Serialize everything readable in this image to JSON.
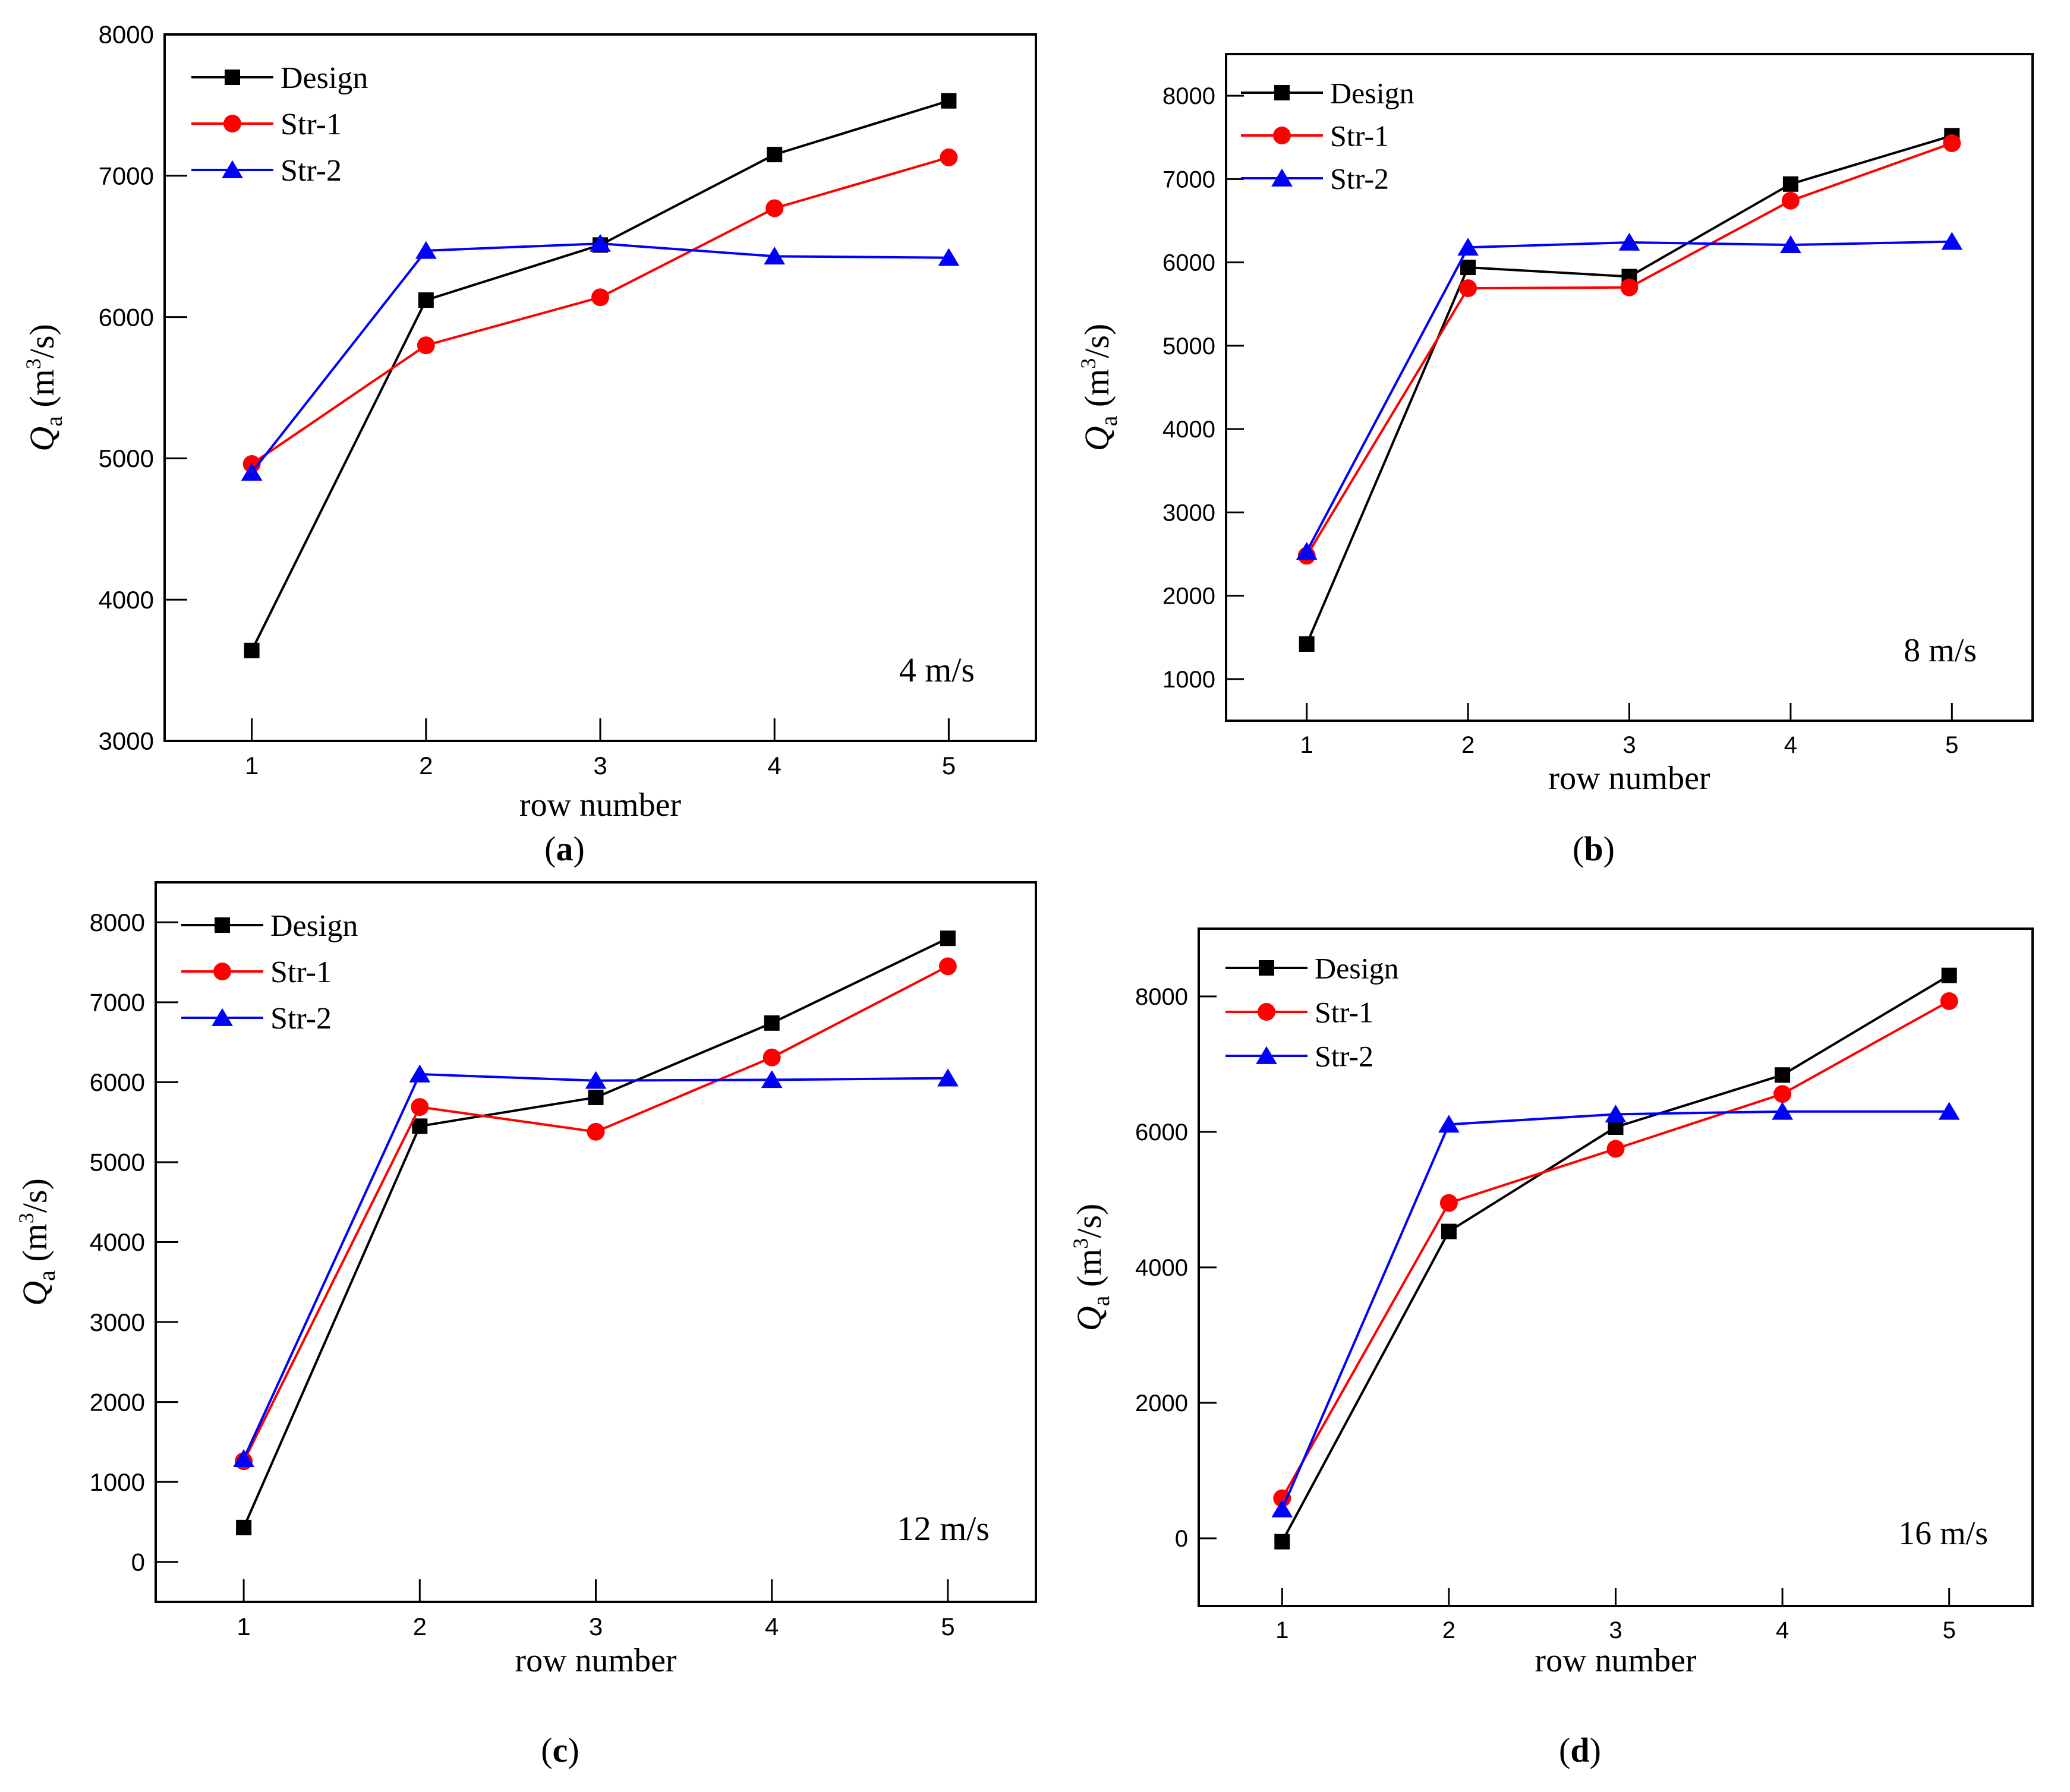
{
  "figure": {
    "colors": {
      "Design": "#000000",
      "Str-1": "#ff0000",
      "Str-2": "#0000ff"
    },
    "markers": {
      "Design": "square",
      "Str-1": "circle",
      "Str-2": "triangle"
    }
  },
  "chart_data": [
    {
      "type": "line",
      "panel_label": "a",
      "annotation": "4 m/s",
      "xlabel": "row number",
      "ylabel_main": "Q",
      "ylabel_sub": "a",
      "ylabel_unit": "(m",
      "ylabel_sup": "3",
      "ylabel_tail": "/s)",
      "x": [
        1,
        2,
        3,
        4,
        5
      ],
      "xlim": [
        0.5,
        5.5
      ],
      "ylim": [
        3000,
        8000
      ],
      "yticks": [
        3000,
        4000,
        5000,
        6000,
        7000,
        8000
      ],
      "legend": "top-left",
      "series": [
        {
          "name": "Design",
          "values": [
            3640,
            6120,
            6510,
            7150,
            7530
          ]
        },
        {
          "name": "Str-1",
          "values": [
            4960,
            5800,
            6140,
            6770,
            7130
          ]
        },
        {
          "name": "Str-2",
          "values": [
            4900,
            6470,
            6520,
            6430,
            6420
          ]
        }
      ]
    },
    {
      "type": "line",
      "panel_label": "b",
      "annotation": "8 m/s",
      "xlabel": "row number",
      "ylabel_main": "Q",
      "ylabel_sub": "a",
      "ylabel_unit": "(m",
      "ylabel_sup": "3",
      "ylabel_tail": "/s)",
      "x": [
        1,
        2,
        3,
        4,
        5
      ],
      "xlim": [
        0.5,
        5.5
      ],
      "ylim": [
        500,
        8500
      ],
      "yticks": [
        1000,
        2000,
        3000,
        4000,
        5000,
        6000,
        7000,
        8000
      ],
      "legend": "top-left",
      "series": [
        {
          "name": "Design",
          "values": [
            1420,
            5940,
            5830,
            6940,
            7520
          ]
        },
        {
          "name": "Str-1",
          "values": [
            2480,
            5690,
            5700,
            6740,
            7430
          ]
        },
        {
          "name": "Str-2",
          "values": [
            2530,
            6180,
            6240,
            6210,
            6250
          ]
        }
      ]
    },
    {
      "type": "line",
      "panel_label": "c",
      "annotation": "12 m/s",
      "xlabel": "row number",
      "ylabel_main": "Q",
      "ylabel_sub": "a",
      "ylabel_unit": "(m",
      "ylabel_sup": "3",
      "ylabel_tail": "/s)",
      "x": [
        1,
        2,
        3,
        4,
        5
      ],
      "xlim": [
        0.5,
        5.5
      ],
      "ylim": [
        -500,
        8500
      ],
      "yticks": [
        0,
        1000,
        2000,
        3000,
        4000,
        5000,
        6000,
        7000,
        8000
      ],
      "legend": "top-left",
      "series": [
        {
          "name": "Design",
          "values": [
            430,
            5450,
            5810,
            6740,
            7800
          ]
        },
        {
          "name": "Str-1",
          "values": [
            1260,
            5690,
            5380,
            6310,
            7450
          ]
        },
        {
          "name": "Str-2",
          "values": [
            1290,
            6100,
            6020,
            6030,
            6050
          ]
        }
      ]
    },
    {
      "type": "line",
      "panel_label": "d",
      "annotation": "16 m/s",
      "xlabel": "row number",
      "ylabel_main": "Q",
      "ylabel_sub": "a",
      "ylabel_unit": "(m",
      "ylabel_sup": "3",
      "ylabel_tail": "/s)",
      "x": [
        1,
        2,
        3,
        4,
        5
      ],
      "xlim": [
        0.5,
        5.5
      ],
      "ylim": [
        -1000,
        9000
      ],
      "yticks": [
        0,
        2000,
        4000,
        6000,
        8000
      ],
      "legend": "top-left",
      "series": [
        {
          "name": "Design",
          "values": [
            -50,
            4530,
            6070,
            6840,
            8310
          ]
        },
        {
          "name": "Str-1",
          "values": [
            590,
            4950,
            5750,
            6560,
            7930
          ]
        },
        {
          "name": "Str-2",
          "values": [
            430,
            6110,
            6260,
            6300,
            6300
          ]
        }
      ]
    }
  ]
}
